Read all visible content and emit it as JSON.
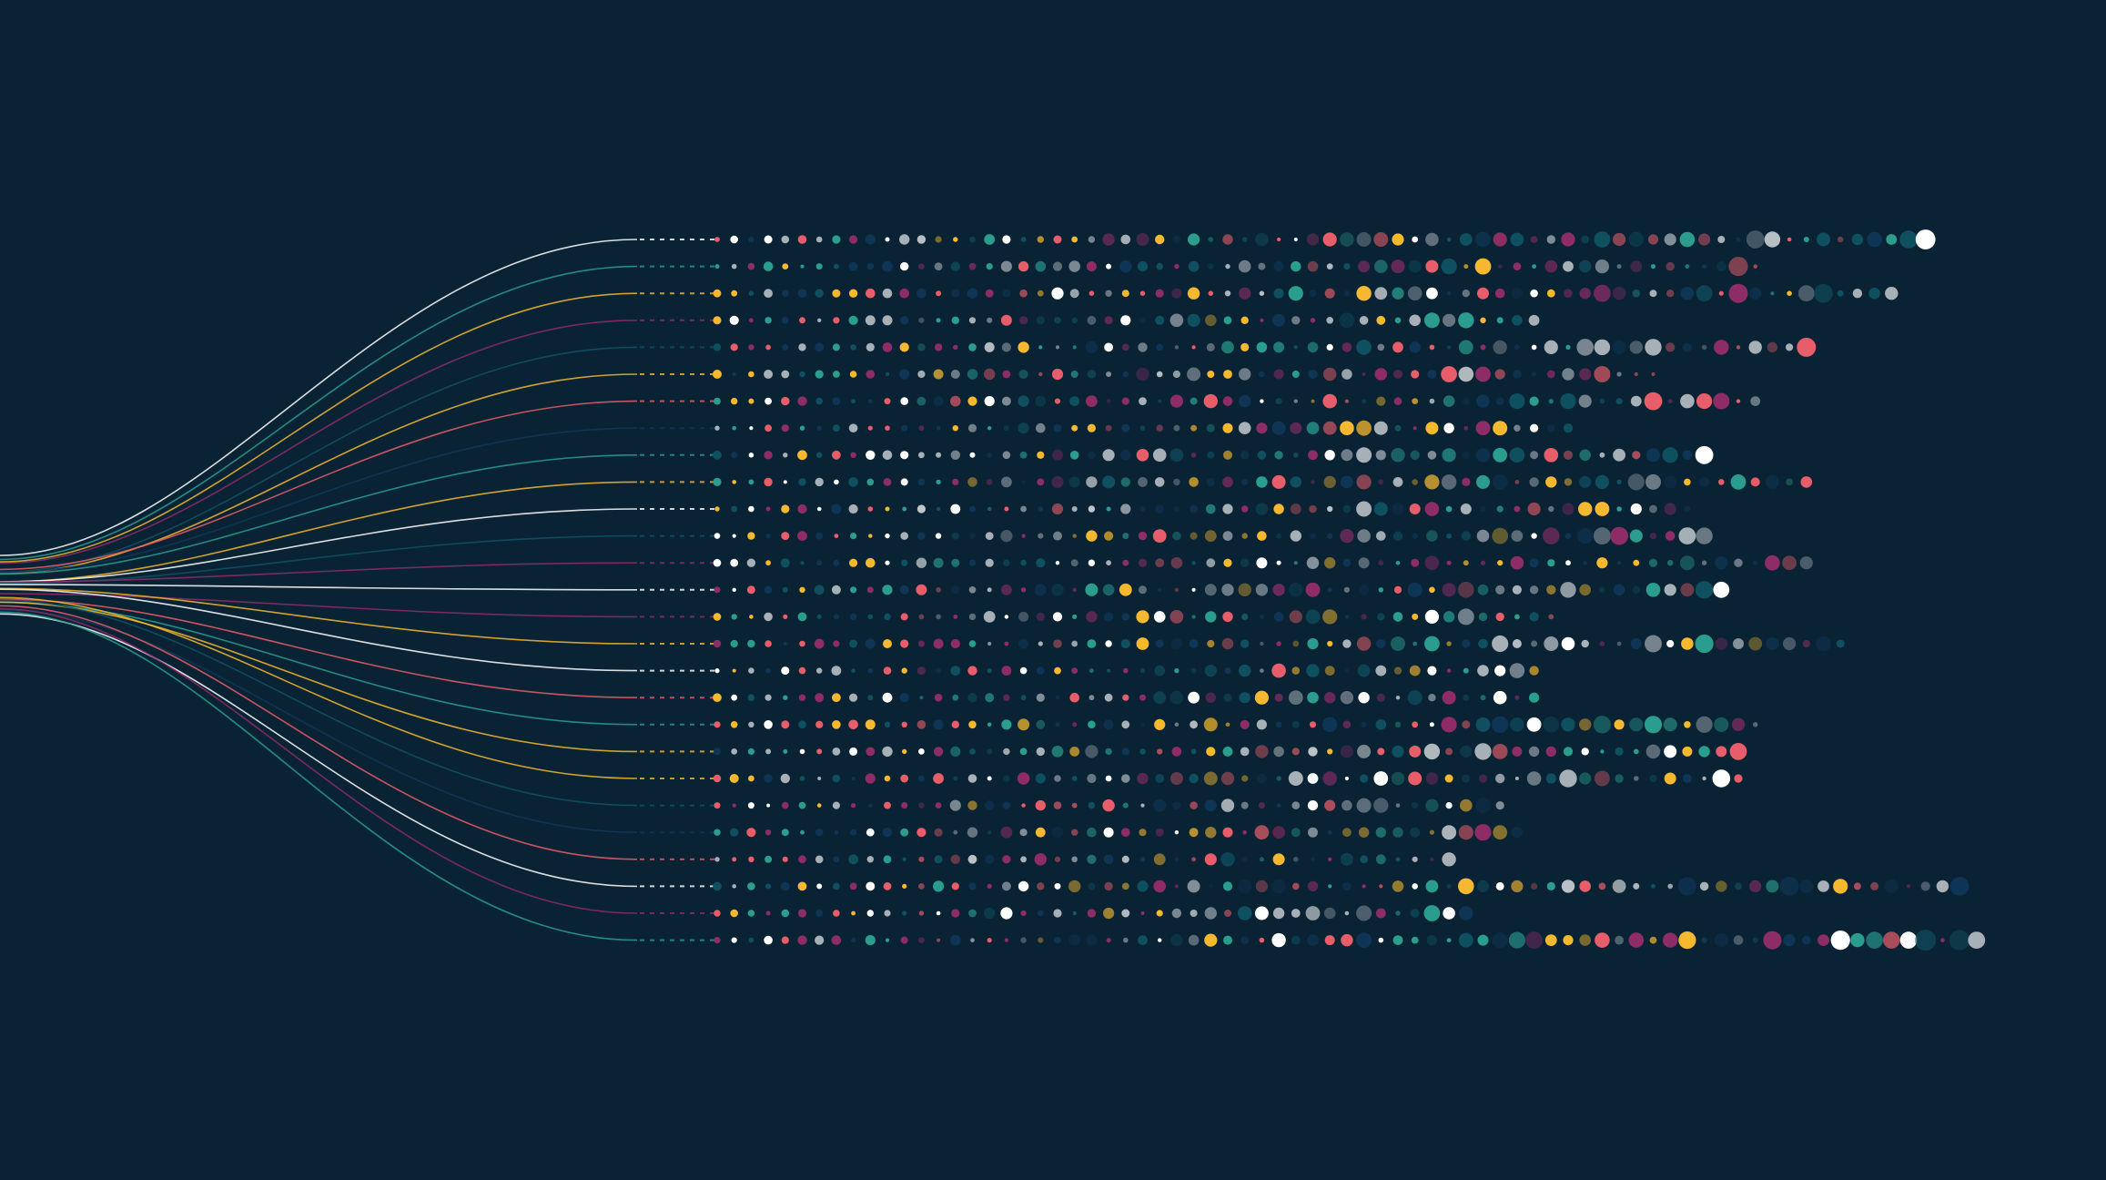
{
  "background": "#0a2334",
  "palette": {
    "teal": "#2a9d8f",
    "coral": "#e85d6a",
    "yellow": "#f5b82e",
    "magenta": "#8e2c66",
    "white": "#ffffff",
    "grey": "#a7afb7",
    "navy": "#0f3556",
    "deep-teal": "#0f5060"
  },
  "row_line_colors": [
    "#ffffff",
    "#2a9d8f",
    "#f5b82e",
    "#8e2c66",
    "#0f5060",
    "#f5b82e",
    "#e85d6a",
    "#0f3556",
    "#2a9d8f",
    "#f5b82e",
    "#ffffff",
    "#0f5060",
    "#8e2c66",
    "#ffffff",
    "#8e2c66",
    "#f5b82e",
    "#ffffff",
    "#e85d6a",
    "#2a9d8f",
    "#f5b82e",
    "#f5b82e",
    "#0f5060",
    "#0f3556",
    "#e85d6a",
    "#ffffff",
    "#8e2c66",
    "#2a9d8f"
  ]
}
